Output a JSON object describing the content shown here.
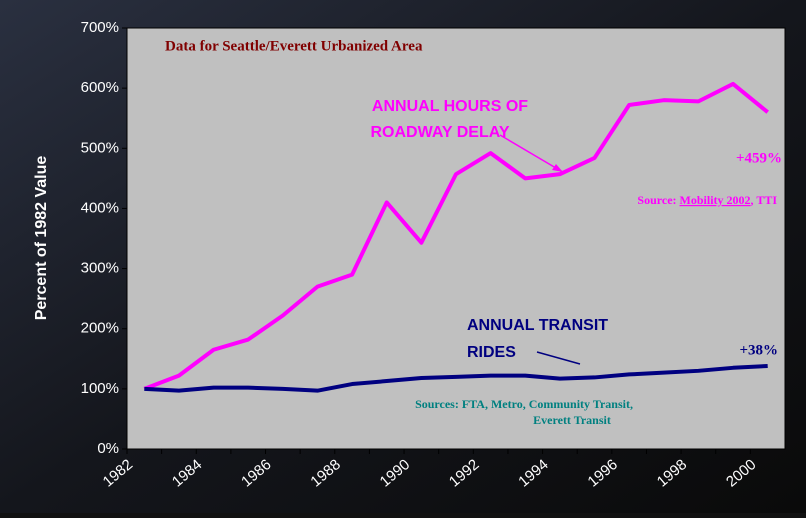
{
  "chart_data": {
    "type": "line",
    "ylabel": "Percent of 1982 Value",
    "categories": [
      "1982",
      null,
      "1984",
      null,
      "1986",
      null,
      "1988",
      null,
      "1990",
      null,
      "1992",
      null,
      "1994",
      null,
      "1996",
      null,
      "1998",
      null,
      "2000"
    ],
    "series": [
      {
        "name": "ANNUAL HOURS OF ROADWAY DELAY",
        "color": "#ff00ff",
        "values": [
          100,
          122,
          165,
          182,
          222,
          270,
          290,
          410,
          343,
          457,
          492,
          450,
          457,
          484,
          572,
          580,
          578,
          607,
          560
        ]
      },
      {
        "name": "ANNUAL TRANSIT RIDES",
        "color": "#000080",
        "values": [
          100,
          97,
          102,
          102,
          100,
          97,
          108,
          113,
          118,
          120,
          122,
          122,
          117,
          119,
          124,
          127,
          130,
          135,
          138
        ]
      }
    ],
    "ylim": [
      0,
      700
    ],
    "yticks": [
      {
        "value": 0,
        "label": "0%"
      },
      {
        "value": 100,
        "label": "100%"
      },
      {
        "value": 200,
        "label": "200%"
      },
      {
        "value": 300,
        "label": "300%"
      },
      {
        "value": 400,
        "label": "400%"
      },
      {
        "value": 500,
        "label": "500%"
      },
      {
        "value": 600,
        "label": "600%"
      },
      {
        "value": 700,
        "label": "700%"
      }
    ],
    "annotations": {
      "area": "Data for Seattle/Everett Urbanized Area",
      "roadway_label": [
        "ANNUAL HOURS OF",
        "ROADWAY DELAY"
      ],
      "roadway_change": "+459%",
      "roadway_source": [
        "Source: ",
        "Mobility 2002",
        ", TTI"
      ],
      "transit_label": [
        "ANNUAL TRANSIT",
        "RIDES"
      ],
      "transit_change": "+38%",
      "transit_source": [
        "Sources: FTA, Metro, Community Transit,",
        "Everett Transit"
      ]
    }
  }
}
